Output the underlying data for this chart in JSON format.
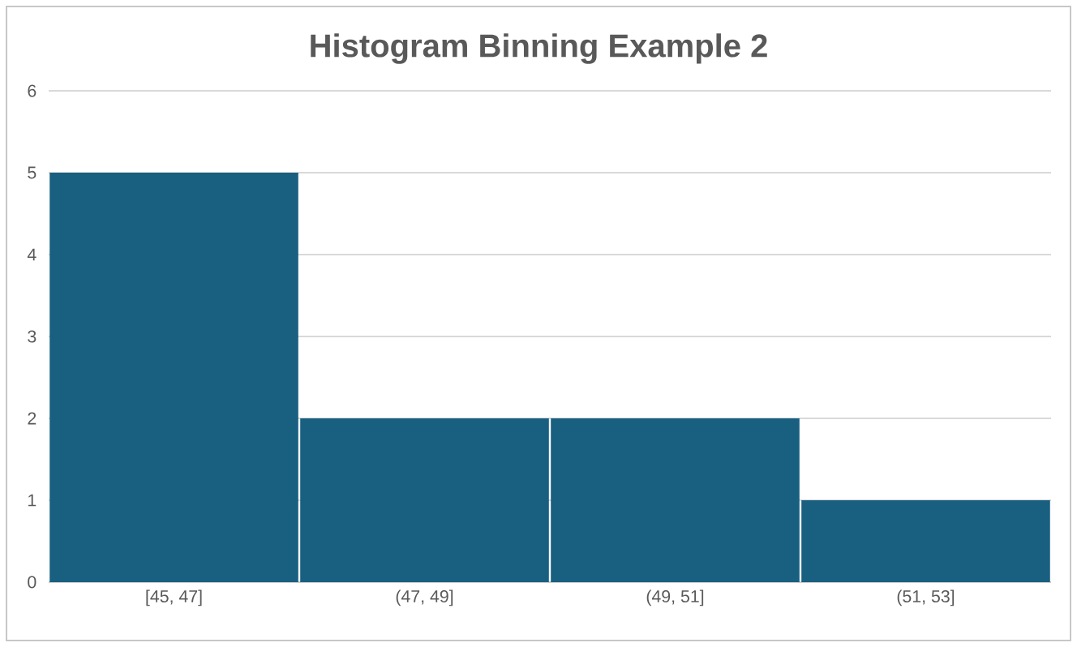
{
  "chart_data": {
    "type": "bar",
    "title": "Histogram Binning Example 2",
    "categories": [
      "[45, 47]",
      "(47, 49]",
      "(49, 51]",
      "(51, 53]"
    ],
    "values": [
      5,
      2,
      2,
      1
    ],
    "color": "#185f80",
    "ylim": [
      0,
      6
    ],
    "yticks": [
      0,
      1,
      2,
      3,
      4,
      5,
      6
    ],
    "grid": "y"
  }
}
